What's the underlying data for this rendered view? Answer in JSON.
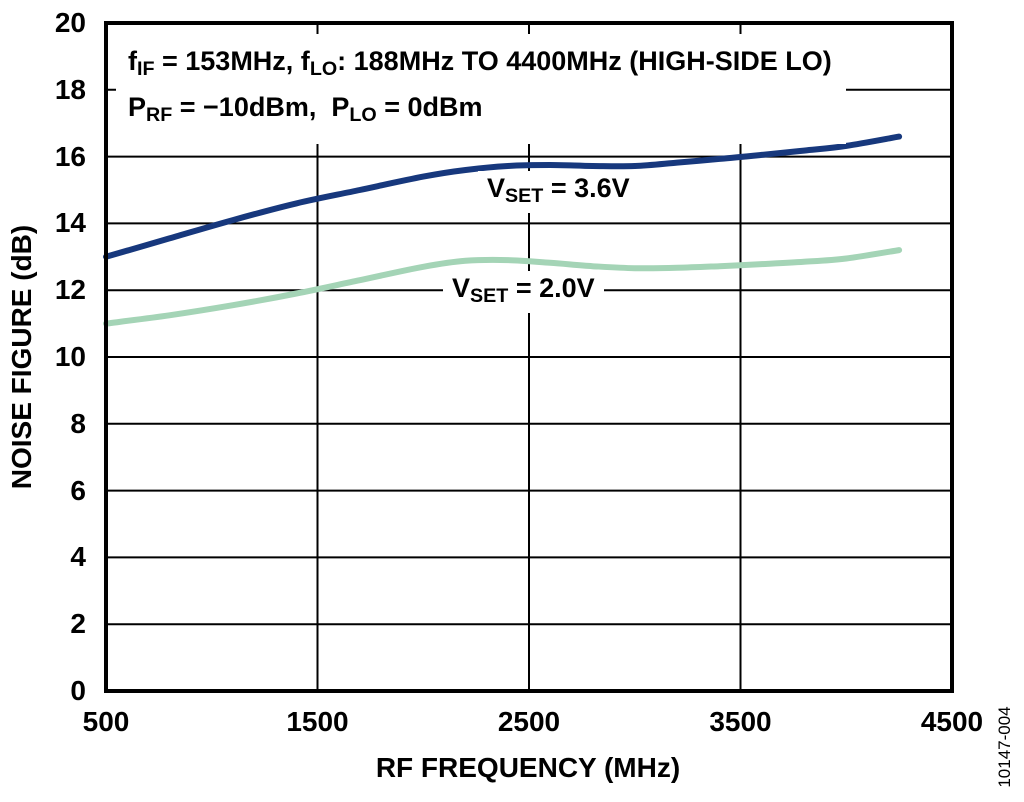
{
  "figure_code": "10147-004",
  "colors": {
    "background": "#ffffff",
    "grid": "#000000",
    "border": "#000000",
    "text": "#000000",
    "series_vset_3v6": "#17387d",
    "series_vset_2v0": "#a4d4b6"
  },
  "annotation": {
    "line1_segments": [
      [
        "f",
        false
      ],
      [
        "IF",
        true
      ],
      [
        " = 153MHz, f",
        false
      ],
      [
        "LO",
        true
      ],
      [
        ": 188MHz TO 4400MHz (HIGH-SIDE LO)",
        false
      ]
    ],
    "line2_segments": [
      [
        "P",
        false
      ],
      [
        "RF",
        true
      ],
      [
        " = −10dBm,  P",
        false
      ],
      [
        "LO",
        true
      ],
      [
        " = 0dBm",
        false
      ]
    ]
  },
  "chart_data": {
    "type": "line",
    "title": "",
    "xlabel": "RF FREQUENCY (MHz)",
    "ylabel": "NOISE FIGURE (dB)",
    "xlim": [
      500,
      4500
    ],
    "ylim": [
      0,
      20
    ],
    "xticks": [
      500,
      1500,
      2500,
      3500,
      4500
    ],
    "yticks": [
      0,
      2,
      4,
      6,
      8,
      10,
      12,
      14,
      16,
      18,
      20
    ],
    "grid": true,
    "legend_position": "inline-labels",
    "series": [
      {
        "name": "VSET = 3.6V",
        "slug": "vset-3v6",
        "color": "#17387d",
        "label_segments": [
          [
            "V",
            false
          ],
          [
            "SET",
            true
          ],
          [
            " = 3.6V",
            false
          ]
        ],
        "x": [
          500,
          800,
          1100,
          1400,
          1700,
          2000,
          2200,
          2400,
          2600,
          2800,
          3000,
          3200,
          3400,
          3600,
          3800,
          4000,
          4250
        ],
        "y": [
          13.0,
          13.55,
          14.1,
          14.6,
          15.0,
          15.4,
          15.6,
          15.72,
          15.75,
          15.72,
          15.72,
          15.82,
          15.93,
          16.05,
          16.18,
          16.32,
          16.6
        ]
      },
      {
        "name": "VSET = 2.0V",
        "slug": "vset-2v0",
        "color": "#a4d4b6",
        "label_segments": [
          [
            "V",
            false
          ],
          [
            "SET",
            true
          ],
          [
            " = 2.0V",
            false
          ]
        ],
        "x": [
          500,
          800,
          1100,
          1400,
          1700,
          2000,
          2200,
          2400,
          2600,
          2800,
          3000,
          3200,
          3400,
          3600,
          3800,
          4000,
          4250
        ],
        "y": [
          11.0,
          11.25,
          11.55,
          11.9,
          12.3,
          12.7,
          12.88,
          12.9,
          12.82,
          12.72,
          12.66,
          12.67,
          12.72,
          12.78,
          12.85,
          12.95,
          13.2
        ]
      }
    ]
  }
}
